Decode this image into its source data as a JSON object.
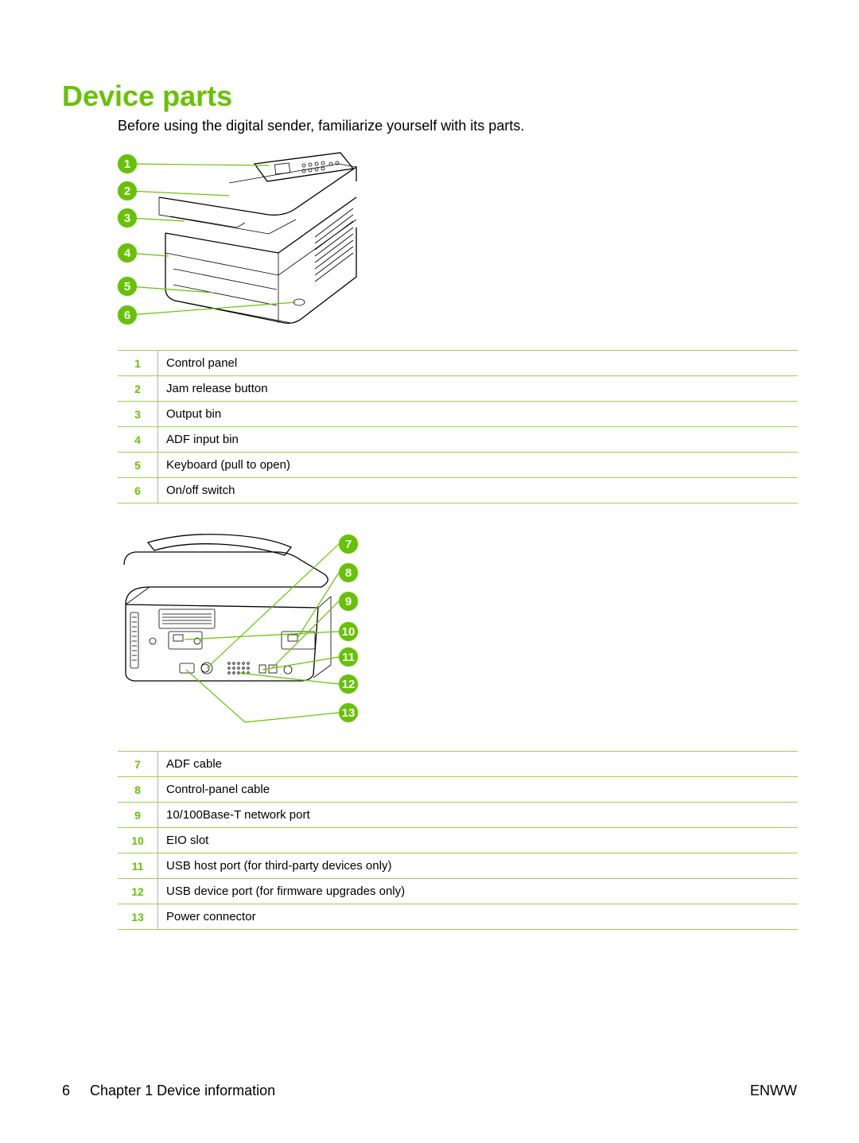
{
  "heading": "Device parts",
  "intro": "Before using the digital sender, familiarize yourself with its parts.",
  "accent_color": "#66c203",
  "border_color": "#99d24d",
  "diagram1": {
    "callouts": [
      {
        "n": "1"
      },
      {
        "n": "2"
      },
      {
        "n": "3"
      },
      {
        "n": "4"
      },
      {
        "n": "5"
      },
      {
        "n": "6"
      }
    ]
  },
  "table1": {
    "rows": [
      {
        "n": "1",
        "label": "Control panel"
      },
      {
        "n": "2",
        "label": "Jam release button"
      },
      {
        "n": "3",
        "label": "Output bin"
      },
      {
        "n": "4",
        "label": "ADF input bin"
      },
      {
        "n": "5",
        "label": "Keyboard (pull to open)"
      },
      {
        "n": "6",
        "label": "On/off switch"
      }
    ]
  },
  "diagram2": {
    "callouts": [
      {
        "n": "7"
      },
      {
        "n": "8"
      },
      {
        "n": "9"
      },
      {
        "n": "10"
      },
      {
        "n": "11"
      },
      {
        "n": "12"
      },
      {
        "n": "13"
      }
    ]
  },
  "table2": {
    "rows": [
      {
        "n": "7",
        "label": "ADF cable"
      },
      {
        "n": "8",
        "label": "Control-panel cable"
      },
      {
        "n": "9",
        "label": "10/100Base-T network port"
      },
      {
        "n": "10",
        "label": "EIO slot"
      },
      {
        "n": "11",
        "label": "USB host port (for third-party devices only)"
      },
      {
        "n": "12",
        "label": "USB device port (for firmware upgrades only)"
      },
      {
        "n": "13",
        "label": "Power connector"
      }
    ]
  },
  "footer": {
    "page_number": "6",
    "chapter": "Chapter 1   Device information",
    "right": "ENWW"
  }
}
